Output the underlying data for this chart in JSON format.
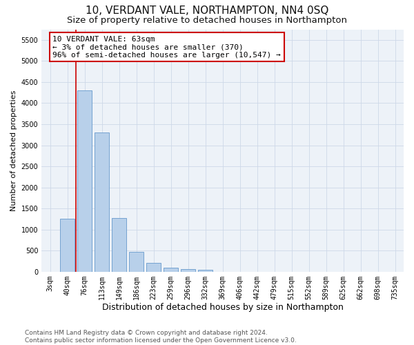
{
  "title": "10, VERDANT VALE, NORTHAMPTON, NN4 0SQ",
  "subtitle": "Size of property relative to detached houses in Northampton",
  "xlabel": "Distribution of detached houses by size in Northampton",
  "ylabel": "Number of detached properties",
  "categories": [
    "3sqm",
    "40sqm",
    "76sqm",
    "113sqm",
    "149sqm",
    "186sqm",
    "223sqm",
    "259sqm",
    "296sqm",
    "332sqm",
    "369sqm",
    "406sqm",
    "442sqm",
    "479sqm",
    "515sqm",
    "552sqm",
    "589sqm",
    "625sqm",
    "662sqm",
    "698sqm",
    "735sqm"
  ],
  "values": [
    0,
    1250,
    4300,
    3300,
    1280,
    480,
    210,
    90,
    60,
    50,
    0,
    0,
    0,
    0,
    0,
    0,
    0,
    0,
    0,
    0,
    0
  ],
  "bar_color": "#b8d0ea",
  "bar_edge_color": "#6699cc",
  "vline_x": 1.5,
  "vline_color": "#cc0000",
  "annotation_line1": "10 VERDANT VALE: 63sqm",
  "annotation_line2": "← 3% of detached houses are smaller (370)",
  "annotation_line3": "96% of semi-detached houses are larger (10,547) →",
  "annotation_box_edgecolor": "#cc0000",
  "annotation_box_facecolor": "#ffffff",
  "ylim": [
    0,
    5750
  ],
  "yticks": [
    0,
    500,
    1000,
    1500,
    2000,
    2500,
    3000,
    3500,
    4000,
    4500,
    5000,
    5500
  ],
  "grid_color": "#cdd8e8",
  "bg_color": "#edf2f8",
  "footer_line1": "Contains HM Land Registry data © Crown copyright and database right 2024.",
  "footer_line2": "Contains public sector information licensed under the Open Government Licence v3.0.",
  "title_fontsize": 11,
  "subtitle_fontsize": 9.5,
  "xlabel_fontsize": 9,
  "ylabel_fontsize": 8,
  "tick_fontsize": 7,
  "annotation_fontsize": 8,
  "footer_fontsize": 6.5
}
